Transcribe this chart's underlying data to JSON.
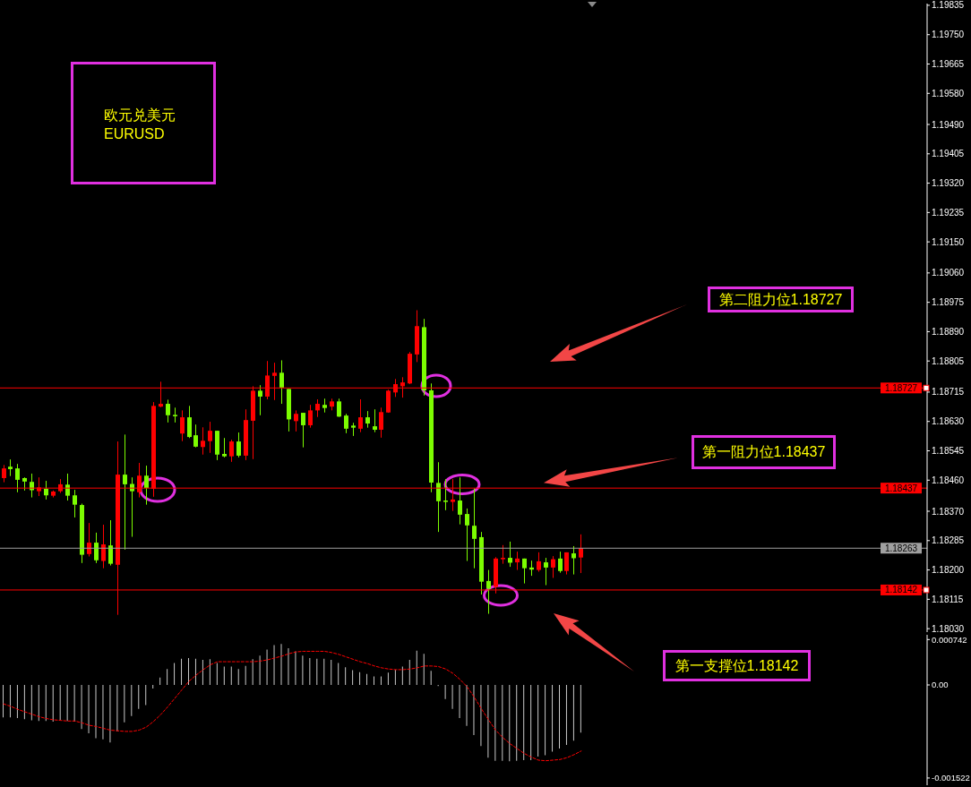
{
  "chart_data": [
    {
      "type": "candlestick",
      "title": "欧元兑美元",
      "subtitle": "EURUSD",
      "categories": [
        null,
        null,
        null,
        null,
        null,
        null,
        null,
        null,
        null,
        null,
        null,
        null,
        null,
        null,
        null,
        null,
        null,
        null,
        null,
        null,
        null,
        null,
        null,
        null,
        null,
        null,
        null,
        null,
        null,
        null,
        null,
        null,
        null,
        null,
        null,
        null,
        null,
        null,
        null,
        null,
        null,
        null,
        null,
        null,
        null,
        null,
        null,
        null,
        null,
        null,
        null,
        null,
        null,
        null,
        null,
        null,
        null,
        null,
        null,
        null,
        null,
        null,
        null,
        null,
        null,
        null,
        null,
        null,
        null,
        null,
        null,
        null,
        null,
        null,
        null,
        null,
        null,
        null,
        null,
        null,
        null,
        null,
        null,
        null,
        null,
        null,
        null,
        null,
        null,
        null,
        null,
        null,
        null,
        null,
        null,
        null,
        null,
        null,
        null,
        null,
        null,
        null,
        null,
        null,
        null,
        null,
        null,
        null,
        null,
        null,
        null,
        null,
        null,
        null,
        null,
        null,
        null,
        null,
        null,
        null,
        null,
        null,
        null,
        null,
        null,
        null,
        null,
        null,
        null,
        null
      ],
      "ohlc": [
        [
          1.18466,
          1.18504,
          1.18454,
          1.18494
        ],
        [
          1.18499,
          1.1852,
          1.18472,
          1.18492
        ],
        [
          1.18494,
          1.18507,
          1.18425,
          1.18461
        ],
        [
          1.18466,
          1.18468,
          1.1843,
          1.18456
        ],
        [
          1.18455,
          1.18479,
          1.1841,
          1.18431
        ],
        [
          1.18428,
          1.18468,
          1.18414,
          1.18439
        ],
        [
          1.18435,
          1.18458,
          1.18404,
          1.18416
        ],
        [
          1.18415,
          1.1843,
          1.1841,
          1.18427
        ],
        [
          1.18428,
          1.18463,
          1.18423,
          1.18448
        ],
        [
          1.18447,
          1.18479,
          1.18401,
          1.18415
        ],
        [
          1.18416,
          1.18432,
          1.18352,
          1.18389
        ],
        [
          1.18388,
          1.18392,
          1.1822,
          1.18244
        ],
        [
          1.18246,
          1.18336,
          1.18239,
          1.18279
        ],
        [
          1.18279,
          1.18308,
          1.1822,
          1.18228
        ],
        [
          1.18226,
          1.18331,
          1.18205,
          1.18274
        ],
        [
          1.18271,
          1.18344,
          1.18213,
          1.18218
        ],
        [
          1.18215,
          1.18572,
          1.1807,
          1.18476
        ],
        [
          1.18476,
          1.18592,
          1.18259,
          1.18448
        ],
        [
          1.18449,
          1.18468,
          1.18296,
          1.18428
        ],
        [
          1.18425,
          1.1851,
          1.1841,
          1.18473
        ],
        [
          1.18473,
          1.18502,
          1.18389,
          1.18437
        ],
        [
          1.18435,
          1.18686,
          1.18412,
          1.18675
        ],
        [
          1.18673,
          1.18745,
          1.18671,
          1.18681
        ],
        [
          1.18681,
          1.18693,
          1.18627,
          1.18648
        ],
        [
          1.18649,
          1.1867,
          1.18627,
          1.18645
        ],
        [
          1.18595,
          1.18662,
          1.18573,
          1.18642
        ],
        [
          1.18642,
          1.18675,
          1.18582,
          1.18585
        ],
        [
          1.1859,
          1.18621,
          1.18555,
          1.18557
        ],
        [
          1.18556,
          1.18613,
          1.18534,
          1.18574
        ],
        [
          1.18573,
          1.18629,
          1.18539,
          1.18603
        ],
        [
          1.18603,
          1.18603,
          1.18518,
          1.18534
        ],
        [
          1.18536,
          1.18582,
          1.18526,
          1.18529
        ],
        [
          1.18529,
          1.18577,
          1.18513,
          1.18572
        ],
        [
          1.18572,
          1.18598,
          1.18526,
          1.18531
        ],
        [
          1.18531,
          1.18665,
          1.18518,
          1.18634
        ],
        [
          1.18632,
          1.18732,
          1.18521,
          1.18719
        ],
        [
          1.18719,
          1.18735,
          1.18648,
          1.18702
        ],
        [
          1.18702,
          1.18805,
          1.18694,
          1.18763
        ],
        [
          1.18762,
          1.188,
          1.18692,
          1.18771
        ],
        [
          1.18771,
          1.18807,
          1.18681,
          1.18728
        ],
        [
          1.18724,
          1.18724,
          1.18601,
          1.18636
        ],
        [
          1.18631,
          1.18662,
          1.18601,
          1.18652
        ],
        [
          1.18655,
          1.18655,
          1.18555,
          1.18619
        ],
        [
          1.18619,
          1.18678,
          1.18612,
          1.18662
        ],
        [
          1.18662,
          1.18694,
          1.18643,
          1.18681
        ],
        [
          1.18678,
          1.18696,
          1.18656,
          1.18669
        ],
        [
          1.18673,
          1.18696,
          1.18662,
          1.18688
        ],
        [
          1.18688,
          1.18696,
          1.18643,
          1.18644
        ],
        [
          1.18647,
          1.18652,
          1.18596,
          1.18609
        ],
        [
          1.18618,
          1.18626,
          1.18588,
          1.18612
        ],
        [
          1.18609,
          1.18694,
          1.18599,
          1.18642
        ],
        [
          1.18642,
          1.1866,
          1.18612,
          1.18624
        ],
        [
          1.18616,
          1.18665,
          1.18599,
          1.18606
        ],
        [
          1.18606,
          1.1867,
          1.18583,
          1.18657
        ],
        [
          1.18656,
          1.18722,
          1.18655,
          1.18719
        ],
        [
          1.18714,
          1.18753,
          1.18701,
          1.18738
        ],
        [
          1.18732,
          1.18758,
          1.18699,
          1.18743
        ],
        [
          1.1874,
          1.18831,
          1.18738,
          1.18826
        ],
        [
          1.18824,
          1.18952,
          1.18802,
          1.18906
        ],
        [
          1.18903,
          1.18927,
          1.18705,
          1.1872
        ],
        [
          1.1872,
          1.1874,
          1.18425,
          1.18453
        ],
        [
          1.18452,
          1.18512,
          1.1831,
          1.18399
        ],
        [
          1.18401,
          1.18463,
          1.18373,
          1.18397
        ],
        [
          1.18397,
          1.18463,
          1.18371,
          1.18404
        ],
        [
          1.18401,
          1.18468,
          1.18332,
          1.1836
        ],
        [
          1.18362,
          1.18378,
          1.18226,
          1.18329
        ],
        [
          1.18328,
          1.18436,
          1.18205,
          1.1829
        ],
        [
          1.18295,
          1.1831,
          1.18129,
          1.18166
        ],
        [
          1.18168,
          1.182,
          1.18073,
          1.18146
        ],
        [
          1.18151,
          1.18237,
          1.18132,
          1.18233
        ],
        [
          1.18231,
          1.18272,
          1.18218,
          1.18235
        ],
        [
          1.18235,
          1.18282,
          1.18209,
          1.18221
        ],
        [
          1.18222,
          1.18253,
          1.182,
          1.18233
        ],
        [
          1.18233,
          1.18233,
          1.18161,
          1.18205
        ],
        [
          1.18207,
          1.18227,
          1.18183,
          1.18201
        ],
        [
          1.182,
          1.18251,
          1.18195,
          1.18225
        ],
        [
          1.18222,
          1.18235,
          1.18156,
          1.18207
        ],
        [
          1.18207,
          1.1824,
          1.18177,
          1.18231
        ],
        [
          1.18233,
          1.18253,
          1.18192,
          1.18197
        ],
        [
          1.18197,
          1.18251,
          1.18187,
          1.18251
        ],
        [
          1.18248,
          1.18269,
          1.18187,
          1.18234
        ],
        [
          1.18236,
          1.18303,
          1.18191,
          1.18263
        ],
        null,
        null,
        null,
        null,
        null,
        null,
        null,
        null,
        null,
        null,
        null,
        null,
        null,
        null,
        null,
        null,
        null,
        null,
        null,
        null,
        null,
        null,
        null,
        null,
        null,
        null,
        null,
        null,
        null,
        null,
        null,
        null,
        null,
        null,
        null,
        null,
        null,
        null,
        null,
        null,
        null,
        null,
        null,
        null,
        null,
        null,
        null,
        null
      ],
      "colors": [
        "#ff0000",
        "#7cfc00",
        "#7cfc00",
        "#7cfc00",
        "#7cfc00",
        "#ff0000",
        "#7cfc00",
        "#ff0000",
        "#ff0000",
        "#7cfc00",
        "#7cfc00",
        "#7cfc00",
        "#ff0000",
        "#7cfc00",
        "#ff0000",
        "#7cfc00",
        "#ff0000",
        "#7cfc00",
        "#7cfc00",
        "#ff0000",
        "#7cfc00",
        "#ff0000",
        "#ff0000",
        "#7cfc00",
        "#7cfc00",
        "#ff0000",
        "#7cfc00",
        "#7cfc00",
        "#ff0000",
        "#ff0000",
        "#7cfc00",
        "#7cfc00",
        "#ff0000",
        "#7cfc00",
        "#ff0000",
        "#ff0000",
        "#7cfc00",
        "#ff0000",
        "#ff0000",
        "#7cfc00",
        "#7cfc00",
        "#ff0000",
        "#7cfc00",
        "#ff0000",
        "#ff0000",
        "#7cfc00",
        "#ff0000",
        "#7cfc00",
        "#7cfc00",
        "#7cfc00",
        "#ff0000",
        "#7cfc00",
        "#7cfc00",
        "#ff0000",
        "#ff0000",
        "#ff0000",
        "#ff0000",
        "#ff0000",
        "#ff0000",
        "#7cfc00",
        "#7cfc00",
        "#7cfc00",
        "#7cfc00",
        "#ff0000",
        "#7cfc00",
        "#7cfc00",
        "#7cfc00",
        "#7cfc00",
        "#7cfc00",
        "#ff0000",
        "#ff0000",
        "#7cfc00",
        "#ff0000",
        "#7cfc00",
        "#7cfc00",
        "#ff0000",
        "#7cfc00",
        "#ff0000",
        "#7cfc00",
        "#ff0000",
        "#7cfc00",
        "#ff0000",
        null,
        null,
        null,
        null,
        null,
        null,
        null,
        null,
        null,
        null,
        null,
        null,
        null,
        null,
        null,
        null,
        null,
        null,
        null,
        null,
        null,
        null,
        null,
        null,
        null,
        null,
        null,
        null,
        null,
        null,
        null,
        null,
        null,
        null,
        null,
        null,
        null,
        null,
        null,
        null,
        null,
        null,
        null,
        null,
        null,
        null,
        null,
        null
      ],
      "ylim": [
        1.1802,
        1.1984
      ],
      "yticks": [
        1.19835,
        {
          "value": 1.1975,
          "label": "1.19750"
        },
        1.19665,
        {
          "value": 1.1958,
          "label": "1.19580"
        },
        {
          "value": 1.1949,
          "label": "1.19490"
        },
        1.19405,
        {
          "value": 1.1932,
          "label": "1.19320"
        },
        1.19235,
        {
          "value": 1.1915,
          "label": "1.19150"
        },
        {
          "value": 1.1906,
          "label": "1.19060"
        },
        1.18975,
        {
          "value": 1.1889,
          "label": "1.18890"
        },
        1.18805,
        1.18715,
        {
          "value": 1.1863,
          "label": "1.18630"
        },
        1.18545,
        {
          "value": 1.1846,
          "label": "1.18460"
        },
        {
          "value": 1.1837,
          "label": "1.18370"
        },
        1.18285,
        {
          "value": 1.182,
          "label": "1.18200"
        },
        1.18115,
        {
          "value": 1.1803,
          "label": "1.18030"
        }
      ],
      "tick_labels": "y",
      "ref_lines": [
        {
          "axis": "y",
          "value": 1.18727,
          "label": "1.18727",
          "color": "#ff0000"
        },
        {
          "axis": "y",
          "value": 1.18437,
          "label": "1.18437",
          "color": "#ff0000"
        },
        {
          "axis": "y",
          "value": 1.18263,
          "label": "1.18263",
          "color": "#a0a0a0"
        },
        {
          "axis": "y",
          "value": 1.18142,
          "label": "1.18142",
          "color": "#ff0000"
        }
      ],
      "annotations": [
        "第二阻力位1.18727",
        {
          "text": "第一阻力位1.18437",
          "y": 1.18437
        },
        "第一支撑位1.18142"
      ]
    },
    {
      "type": "bar",
      "categories": [
        null,
        null,
        null,
        null,
        null,
        null,
        null,
        null,
        null,
        null,
        null,
        null,
        null,
        null,
        null,
        null,
        null,
        null,
        null,
        null,
        null,
        null,
        null,
        null,
        null,
        null,
        null,
        null,
        null,
        null,
        null,
        null,
        null,
        null,
        null,
        null,
        null,
        null,
        null,
        null,
        null,
        null,
        null,
        null,
        null,
        null,
        null,
        null,
        null,
        null,
        null,
        null,
        null,
        null,
        null,
        null,
        null,
        null,
        null,
        null,
        null,
        null,
        null,
        null,
        null,
        null,
        null,
        null,
        null,
        null,
        null,
        null,
        null,
        null,
        null,
        null,
        null,
        null,
        null,
        null,
        null,
        null,
        null,
        null,
        null,
        null,
        null,
        null,
        null,
        null,
        null,
        null,
        null,
        null,
        null,
        null,
        null,
        null,
        null,
        null,
        null,
        null,
        null,
        null,
        null,
        null,
        null,
        null,
        null,
        null,
        null,
        null,
        null,
        null,
        null,
        null,
        null,
        null,
        null,
        null,
        null,
        null,
        null,
        null,
        null,
        null,
        null,
        null,
        null,
        null
      ],
      "series": [
        {
          "type": "bar",
          "color": "#c8c8c8",
          "values": [
            -0.00053,
            -0.00053,
            -0.00054,
            -0.00056,
            -0.00058,
            -0.00059,
            -0.00059,
            -0.0006,
            -0.00058,
            -0.00059,
            -0.0006,
            -0.00072,
            -0.00079,
            -0.00087,
            -0.00089,
            -0.00094,
            -0.00076,
            -0.00061,
            -0.00051,
            -0.00039,
            -0.00033,
            -6e-05,
            0.00012,
            0.00026,
            0.00036,
            0.00043,
            0.00044,
            0.00043,
            0.00041,
            0.00042,
            0.00036,
            0.0003,
            0.0003,
            0.00026,
            0.00031,
            0.00042,
            0.00048,
            0.00058,
            0.00065,
            0.00067,
            0.0006,
            0.00055,
            0.00048,
            0.00044,
            0.00043,
            0.00043,
            0.00041,
            0.00036,
            0.00029,
            0.00024,
            0.00021,
            0.00018,
            0.00014,
            0.00014,
            0.0002,
            0.00025,
            0.0003,
            0.00041,
            0.00056,
            0.00051,
            0.00023,
            -2e-05,
            -0.00023,
            -0.00039,
            -0.00054,
            -0.00067,
            -0.00082,
            -0.001,
            -0.00119,
            -0.00124,
            -0.00124,
            -0.00125,
            -0.00124,
            -0.00123,
            -0.00123,
            -0.00117,
            -0.00115,
            -0.00109,
            -0.00104,
            -0.00098,
            -0.00091,
            -0.00078,
            null,
            null,
            null,
            null,
            null,
            null,
            null,
            null,
            null,
            null,
            null,
            null,
            null,
            null,
            null,
            null,
            null,
            null,
            null,
            null,
            null,
            null,
            null,
            null,
            null,
            null,
            null,
            null,
            null,
            null,
            null,
            null,
            null,
            null,
            null,
            null,
            null,
            null,
            null,
            null,
            null,
            null,
            null,
            null,
            null,
            null,
            null,
            null
          ]
        },
        {
          "type": "line",
          "color": "#ff0000",
          "line_style": "dashed",
          "values": [
            -0.00031,
            -0.00035,
            -0.0004,
            -0.00044,
            -0.00048,
            -0.00052,
            -0.00055,
            -0.00057,
            -0.00058,
            -0.00059,
            -0.00059,
            -0.00062,
            -0.00066,
            -0.00068,
            -0.00071,
            -0.00074,
            -0.00075,
            -0.00076,
            -0.00076,
            -0.00074,
            -0.00069,
            -0.0006,
            -0.00049,
            -0.00036,
            -0.00022,
            -8e-05,
            6e-05,
            0.00016,
            0.00025,
            0.00033,
            0.00038,
            0.00038,
            0.00038,
            0.00038,
            0.00038,
            0.00038,
            0.00039,
            0.00041,
            0.00044,
            0.00047,
            0.00051,
            0.00054,
            0.00055,
            0.00055,
            0.00055,
            0.00055,
            0.00053,
            0.0005,
            0.00046,
            0.00042,
            0.00038,
            0.00035,
            0.00031,
            0.00028,
            0.00026,
            0.00025,
            0.00025,
            0.00026,
            0.00028,
            0.00031,
            0.00031,
            0.0003,
            0.00026,
            0.00019,
            9e-05,
            -3e-05,
            -0.0002,
            -0.00039,
            -0.00057,
            -0.00074,
            -0.00086,
            -0.00096,
            -0.00104,
            -0.00112,
            -0.00118,
            -0.00123,
            -0.00124,
            -0.00123,
            -0.00122,
            -0.00119,
            -0.00114,
            -0.00108,
            null,
            null,
            null,
            null,
            null,
            null,
            null,
            null,
            null,
            null,
            null,
            null,
            null,
            null,
            null,
            null,
            null,
            null,
            null,
            null,
            null,
            null,
            null,
            null,
            null,
            null,
            null,
            null,
            null,
            null,
            null,
            null,
            null,
            null,
            null,
            null,
            null,
            null,
            null,
            null,
            null,
            null,
            null,
            null,
            null,
            null,
            null,
            null
          ]
        }
      ],
      "ylim": [
        -0.00164,
        0.00082
      ],
      "yticks": [
        0.000742,
        {
          "value": 0,
          "label": "0.00"
        },
        -0.001522
      ],
      "tick_labels": "y"
    }
  ]
}
